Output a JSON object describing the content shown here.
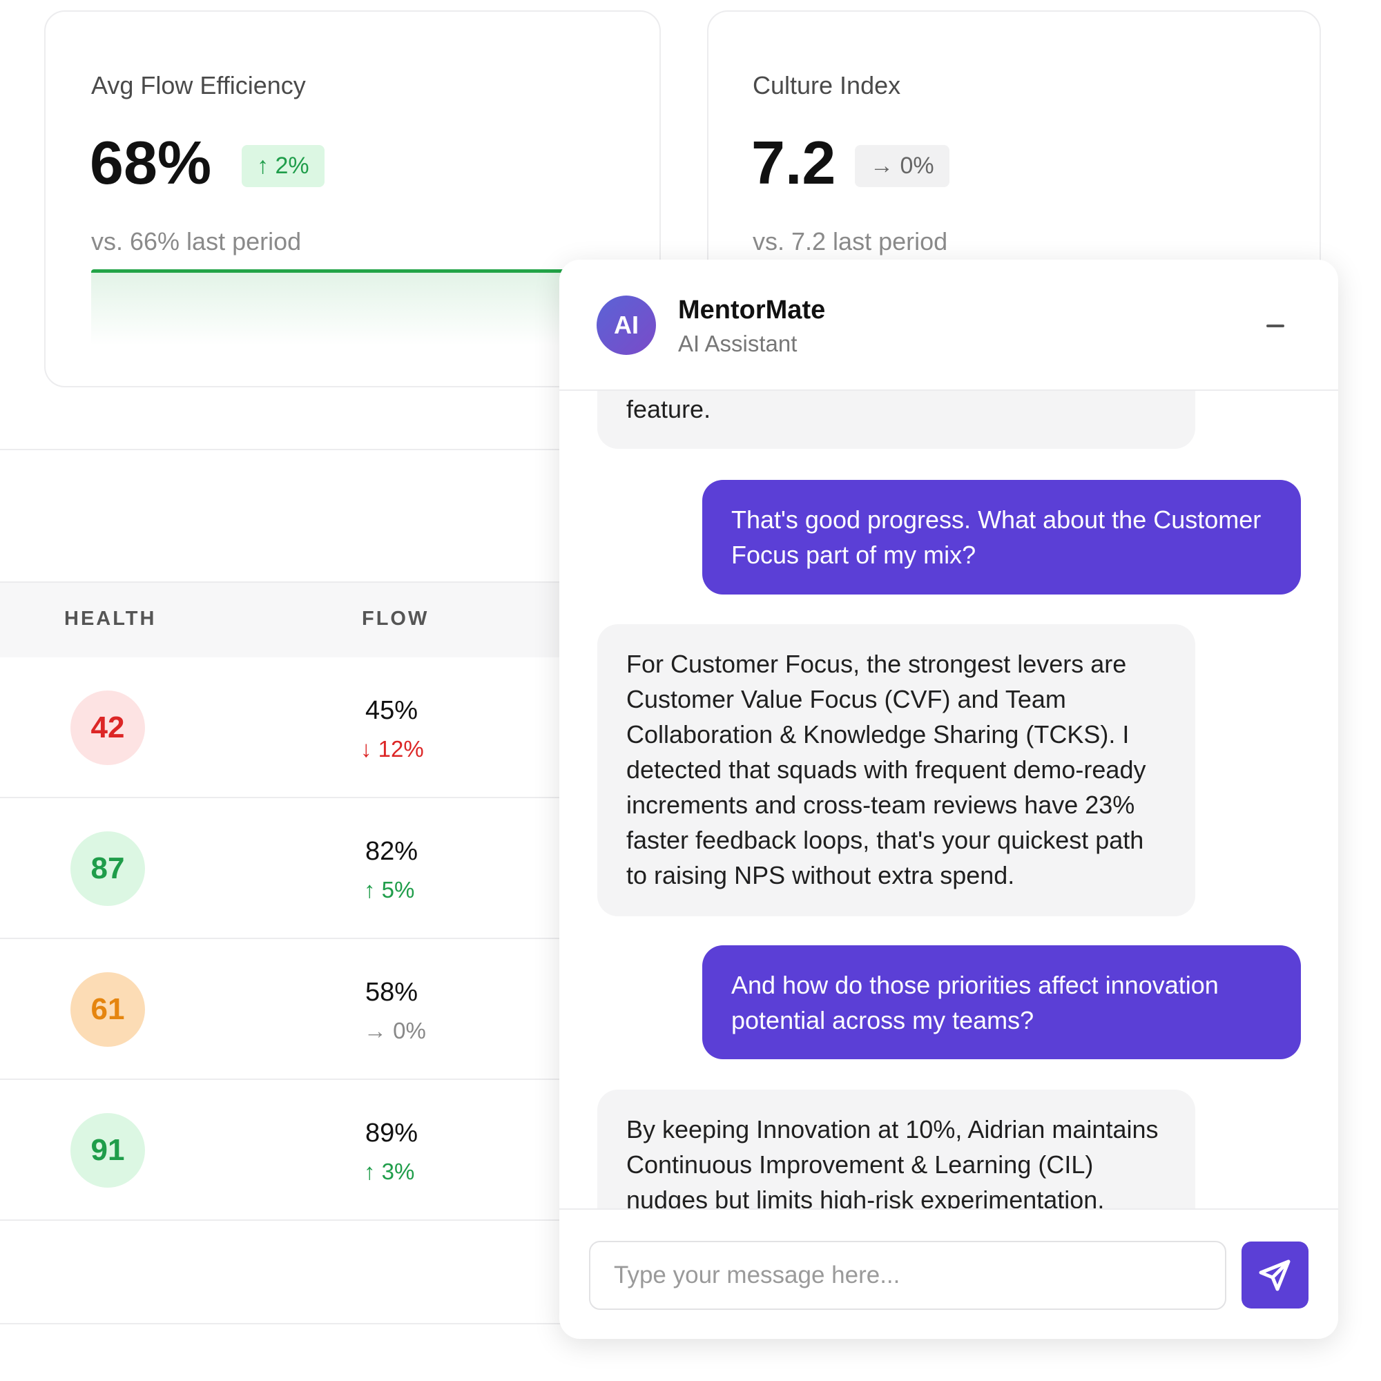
{
  "cards": [
    {
      "title": "Avg Flow Efficiency",
      "value": "68%",
      "delta": "↑ 2%",
      "comparison": "vs. 66% last period"
    },
    {
      "title": "Culture Index",
      "value": "7.2",
      "delta": "→ 0%",
      "comparison": "vs. 7.2 last period"
    }
  ],
  "table": {
    "headers": [
      "HEALTH",
      "FLOW"
    ],
    "rows": [
      {
        "health": "42",
        "flow": "45%",
        "change": "↓ 12%"
      },
      {
        "health": "87",
        "flow": "82%",
        "change": "↑ 5%"
      },
      {
        "health": "61",
        "flow": "58%",
        "change": "→ 0%"
      },
      {
        "health": "91",
        "flow": "89%",
        "change": "↑ 3%"
      }
    ]
  },
  "chat": {
    "avatar": "AI",
    "name": "MentorMate",
    "subtitle": "AI Assistant",
    "messages": [
      {
        "role": "assistant",
        "text": "feature."
      },
      {
        "role": "user",
        "text": "That's good progress. What about the Customer Focus part of my mix?"
      },
      {
        "role": "assistant",
        "text": "For Customer Focus, the strongest levers are Customer Value Focus (CVF) and Team Collaboration & Knowledge Sharing (TCKS). I detected that squads with frequent demo-ready increments and cross-team reviews have 23% faster feedback loops, that's your quickest path to raising NPS without extra spend."
      },
      {
        "role": "user",
        "text": "And how do those priorities affect innovation potential across my teams?"
      },
      {
        "role": "assistant",
        "text": "By keeping Innovation at 10%, Aidrian maintains Continuous Improvement & Learning (CIL) nudges but limits high-risk experimentation."
      }
    ],
    "placeholder": "Type your message here..."
  }
}
